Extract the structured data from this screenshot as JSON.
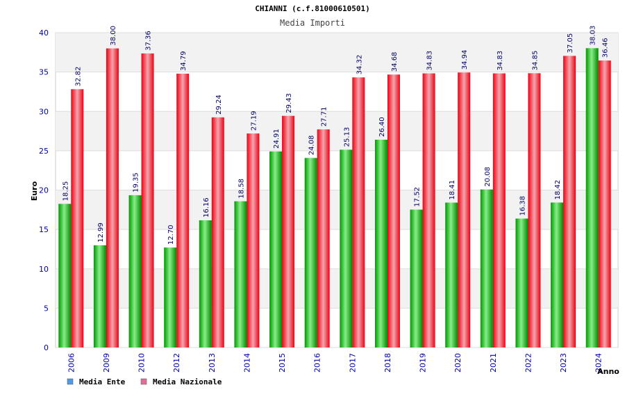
{
  "chart_data": {
    "type": "bar",
    "title": "CHIANNI (c.f.81000610501)",
    "subtitle": "Media Importi",
    "xlabel": "Anno",
    "ylabel": "Euro",
    "ylim": [
      0,
      40
    ],
    "yticks": [
      0,
      5,
      10,
      15,
      20,
      25,
      30,
      35,
      40
    ],
    "grid": true,
    "legend_position": "bottom-left",
    "categories": [
      "2006",
      "2009",
      "2010",
      "2012",
      "2013",
      "2014",
      "2015",
      "2016",
      "2017",
      "2018",
      "2019",
      "2020",
      "2021",
      "2022",
      "2023",
      "2024"
    ],
    "series": [
      {
        "name": "Media Ente",
        "color": "#00bb00",
        "legend_color": "#4f9be8",
        "values": [
          18.25,
          12.99,
          19.35,
          12.7,
          16.16,
          18.58,
          24.91,
          24.08,
          25.13,
          26.4,
          17.52,
          18.41,
          20.08,
          16.38,
          18.42,
          38.03
        ]
      },
      {
        "name": "Media Nazionale",
        "color": "#ee1122",
        "legend_color": "#e0709a",
        "values": [
          32.82,
          38.0,
          37.36,
          34.79,
          29.24,
          27.19,
          29.43,
          27.71,
          34.32,
          34.68,
          34.83,
          34.94,
          34.83,
          34.85,
          37.05,
          36.46
        ]
      }
    ]
  }
}
